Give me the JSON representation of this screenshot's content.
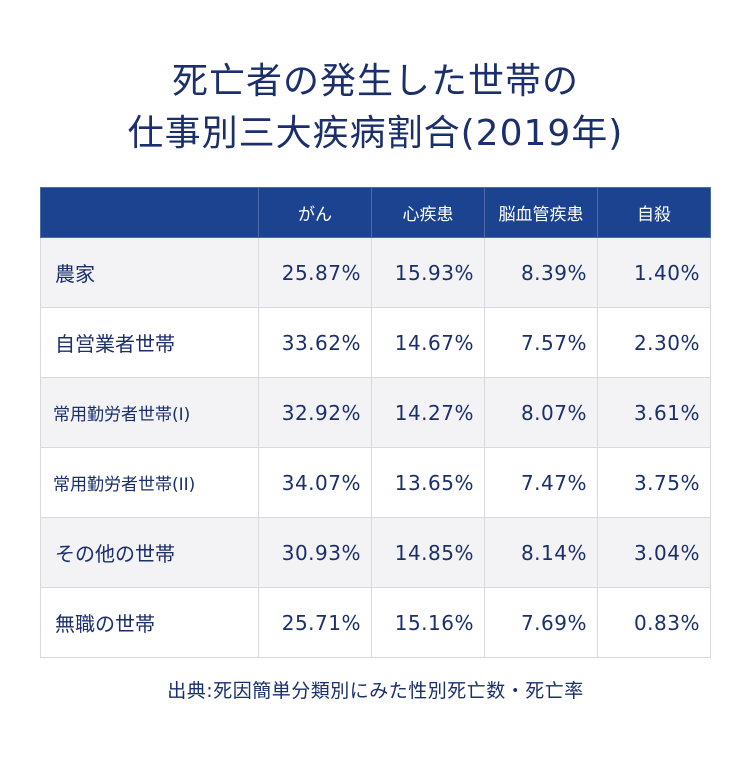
{
  "title_line1": "死亡者の発生した世帯の",
  "title_line2": "仕事別三大疾病割合(2019年)",
  "chart_data": {
    "type": "table",
    "title": "死亡者の発生した世帯の仕事別三大疾病割合(2019年)",
    "columns": [
      "",
      "がん",
      "心疾患",
      "脳血管疾患",
      "自殺"
    ],
    "rows": [
      {
        "label": "農家",
        "values": [
          "25.87%",
          "15.93%",
          "8.39%",
          "1.40%"
        ]
      },
      {
        "label": "自営業者世帯",
        "values": [
          "33.62%",
          "14.67%",
          "7.57%",
          "2.30%"
        ]
      },
      {
        "label": "常用勤労者世帯(I)",
        "values": [
          "32.92%",
          "14.27%",
          "8.07%",
          "3.61%"
        ]
      },
      {
        "label": "常用勤労者世帯(II)",
        "values": [
          "34.07%",
          "13.65%",
          "7.47%",
          "3.75%"
        ]
      },
      {
        "label": "その他の世帯",
        "values": [
          "30.93%",
          "14.85%",
          "8.14%",
          "3.04%"
        ]
      },
      {
        "label": "無職の世帯",
        "values": [
          "25.71%",
          "15.16%",
          "7.69%",
          "0.83%"
        ]
      }
    ]
  },
  "source": "出典:死因簡単分類別にみた性別死亡数・死亡率",
  "colors": {
    "header_bg": "#1c4390",
    "text": "#1a2f6b",
    "stripe": "#f3f2f5"
  }
}
